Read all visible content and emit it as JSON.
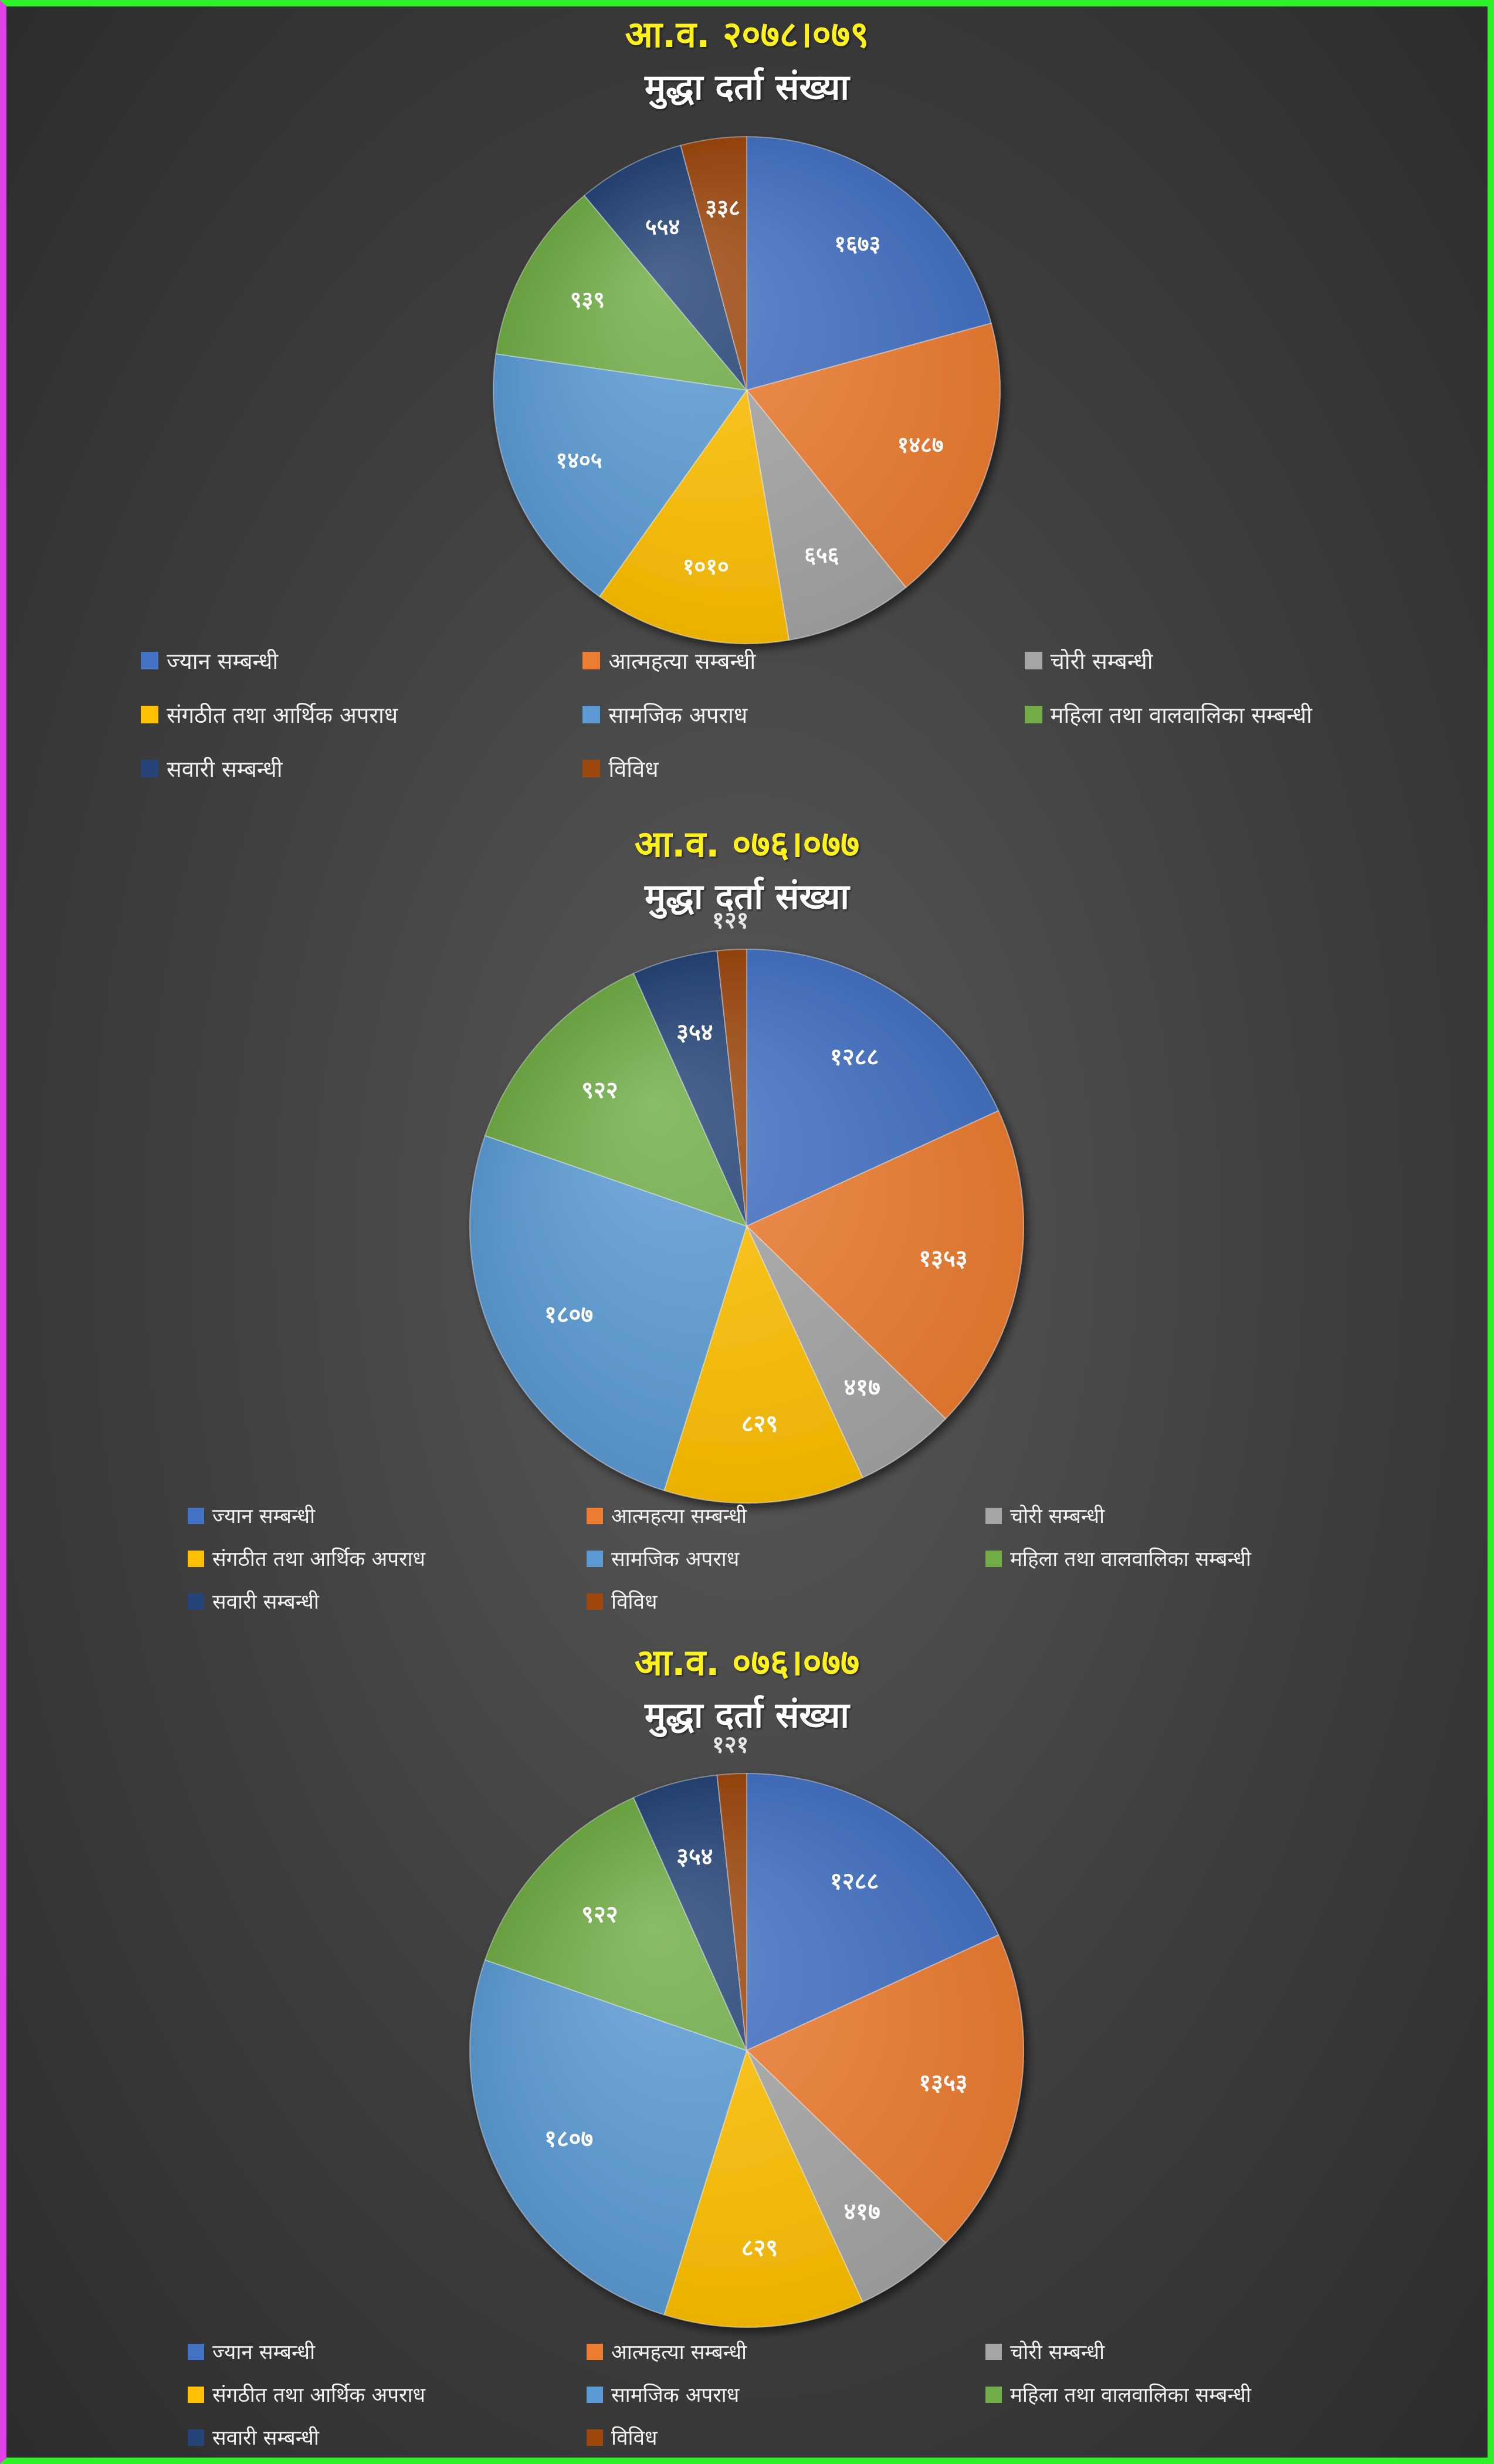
{
  "chart_data": [
    {
      "type": "pie",
      "title": "आ.व. २०७८।०७९",
      "subtitle": "मुद्धा दर्ता संख्या",
      "categories": [
        "ज्यान सम्बन्धी",
        "आत्महत्या सम्बन्धी",
        "चोरी सम्बन्धी",
        "संगठीत तथा आर्थिक अपराध",
        "सामजिक अपराध",
        "महिला तथा वालवालिका सम्बन्धी",
        "सवारी सम्बन्धी",
        "विविध"
      ],
      "values": [
        1673,
        1487,
        656,
        1010,
        1405,
        939,
        554,
        338
      ],
      "value_labels": [
        "१६७३",
        "१४८७",
        "६५६",
        "१०१०",
        "१४०५",
        "९३९",
        "५५४",
        "३३८"
      ],
      "legend_position": "bottom"
    },
    {
      "type": "pie",
      "title": "आ.व. ०७६।०७७",
      "subtitle": "मुद्धा दर्ता संख्या",
      "categories": [
        "ज्यान सम्बन्धी",
        "आत्महत्या सम्बन्धी",
        "चोरी सम्बन्धी",
        "संगठीत तथा आर्थिक अपराध",
        "सामजिक अपराध",
        "महिला तथा वालवालिका सम्बन्धी",
        "सवारी सम्बन्धी",
        "विविध"
      ],
      "values": [
        1288,
        1353,
        417,
        829,
        1807,
        922,
        354,
        121
      ],
      "value_labels": [
        "१२८८",
        "१३५३",
        "४१७",
        "८२९",
        "१८०७",
        "९२२",
        "३५४",
        "१२१"
      ],
      "legend_position": "bottom"
    },
    {
      "type": "pie",
      "title": "आ.व. ०७६।०७७",
      "subtitle": "मुद्धा दर्ता संख्या",
      "categories": [
        "ज्यान सम्बन्धी",
        "आत्महत्या सम्बन्धी",
        "चोरी सम्बन्धी",
        "संगठीत तथा आर्थिक अपराध",
        "सामजिक अपराध",
        "महिला तथा वालवालिका सम्बन्धी",
        "सवारी सम्बन्धी",
        "विविध"
      ],
      "values": [
        1288,
        1353,
        417,
        829,
        1807,
        922,
        354,
        121
      ],
      "value_labels": [
        "१२८८",
        "१३५३",
        "४१७",
        "८२९",
        "१८०७",
        "९२२",
        "३५४",
        "१२१"
      ],
      "legend_position": "bottom"
    }
  ],
  "colors": [
    "#4472c4",
    "#ed7d31",
    "#a5a5a5",
    "#ffc000",
    "#5b9bd5",
    "#70ad47",
    "#264478",
    "#9e480e"
  ]
}
